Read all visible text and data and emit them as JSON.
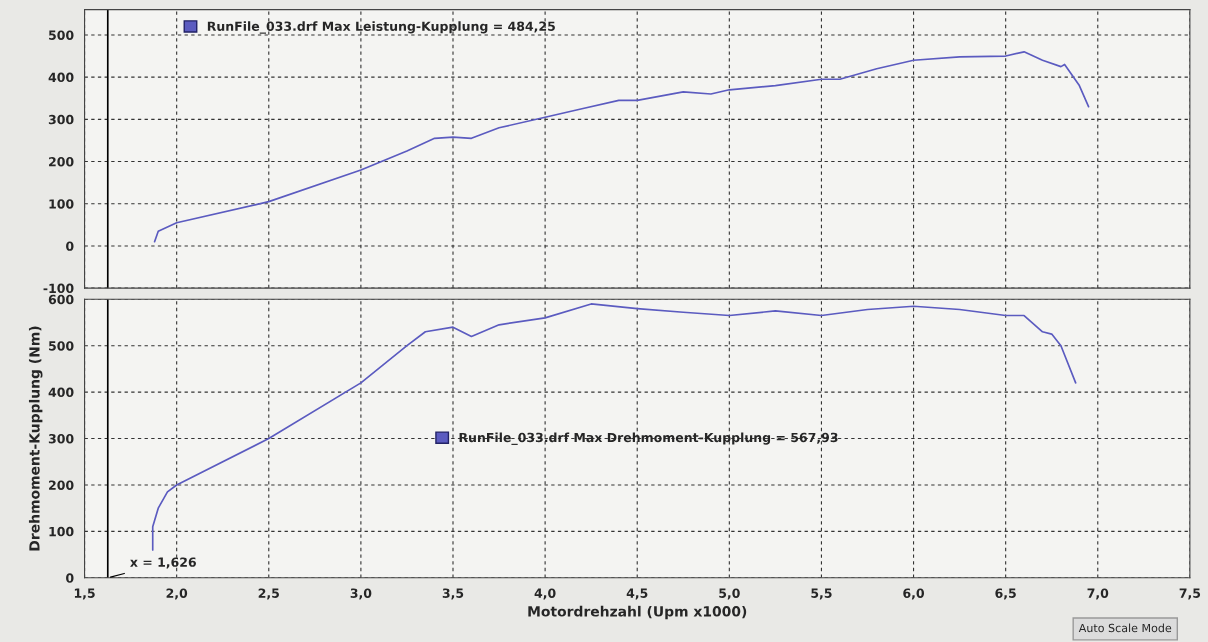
{
  "chart_data": [
    {
      "type": "line",
      "tick_labels": "y",
      "xlim": [
        1.5,
        7.5
      ],
      "xticks": [
        {
          "value": 1.5,
          "label": null
        },
        {
          "value": 2.0,
          "label": null
        },
        {
          "value": 2.5,
          "label": null
        },
        {
          "value": 3.0,
          "label": null
        },
        {
          "value": 3.5,
          "label": null
        },
        {
          "value": 4.0,
          "label": null
        },
        {
          "value": 4.5,
          "label": null
        },
        {
          "value": 5.0,
          "label": null
        },
        {
          "value": 5.5,
          "label": null
        },
        {
          "value": 6.0,
          "label": null
        },
        {
          "value": 6.5,
          "label": null
        },
        {
          "value": 7.0,
          "label": null
        },
        {
          "value": 7.5,
          "label": null
        }
      ],
      "ylim": [
        -100,
        560
      ],
      "yticks": [
        -100,
        0,
        100,
        200,
        300,
        400,
        500
      ],
      "grid": true,
      "legend": "top left",
      "ref_lines": [
        {
          "axis": "x",
          "value": 1.626,
          "color": "#000000"
        }
      ],
      "series": [
        {
          "name": "RunFile_033.drf Max Leistung-Kupplung = 484,25",
          "color": "#5b5bc0",
          "x": [
            1.88,
            1.9,
            2.0,
            2.5,
            3.0,
            3.25,
            3.4,
            3.5,
            3.6,
            3.75,
            4.0,
            4.2,
            4.4,
            4.5,
            4.75,
            4.9,
            5.0,
            5.25,
            5.5,
            5.6,
            5.8,
            6.0,
            6.25,
            6.5,
            6.6,
            6.7,
            6.8,
            6.82,
            6.9,
            6.95
          ],
          "values": [
            10,
            35,
            55,
            105,
            180,
            225,
            255,
            258,
            255,
            280,
            305,
            325,
            345,
            345,
            365,
            360,
            370,
            380,
            395,
            395,
            420,
            440,
            448,
            450,
            460,
            440,
            425,
            430,
            380,
            330
          ]
        }
      ]
    },
    {
      "type": "line",
      "xlim": [
        1.5,
        7.5
      ],
      "xticks": [
        {
          "value": 1.5,
          "label": "1,5"
        },
        {
          "value": 2.0,
          "label": "2,0"
        },
        {
          "value": 2.5,
          "label": "2,5"
        },
        {
          "value": 3.0,
          "label": "3,0"
        },
        {
          "value": 3.5,
          "label": "3,5"
        },
        {
          "value": 4.0,
          "label": "4,0"
        },
        {
          "value": 4.5,
          "label": "4,5"
        },
        {
          "value": 5.0,
          "label": "5,0"
        },
        {
          "value": 5.5,
          "label": "5,5"
        },
        {
          "value": 6.0,
          "label": "6,0"
        },
        {
          "value": 6.5,
          "label": "6,5"
        },
        {
          "value": 7.0,
          "label": "7,0"
        },
        {
          "value": 7.5,
          "label": "7,5"
        }
      ],
      "ylim": [
        0,
        600
      ],
      "yticks": [
        0,
        100,
        200,
        300,
        400,
        500,
        600
      ],
      "grid": true,
      "legend": "center",
      "xlabel": "Motordrehzahl (Upm x1000)",
      "ylabel": "Drehmoment-Kupplung (Nm)",
      "ref_lines": [
        {
          "axis": "x",
          "value": 1.626,
          "label": "x = 1,626",
          "color": "#000000"
        }
      ],
      "annotations": [
        "Auto Scale Mode"
      ],
      "series": [
        {
          "name": "RunFile_033.drf Max Drehmoment-Kupplung = 567,93",
          "color": "#5b5bc0",
          "x": [
            1.87,
            1.87,
            1.9,
            1.95,
            2.0,
            2.5,
            3.0,
            3.25,
            3.35,
            3.5,
            3.6,
            3.75,
            4.0,
            4.25,
            4.5,
            4.75,
            5.0,
            5.25,
            5.5,
            5.75,
            6.0,
            6.25,
            6.5,
            6.6,
            6.7,
            6.75,
            6.8,
            6.88
          ],
          "values": [
            60,
            110,
            150,
            185,
            200,
            300,
            420,
            500,
            530,
            540,
            520,
            545,
            560,
            590,
            580,
            572,
            565,
            575,
            565,
            578,
            585,
            578,
            565,
            565,
            530,
            525,
            500,
            420
          ]
        }
      ]
    }
  ]
}
